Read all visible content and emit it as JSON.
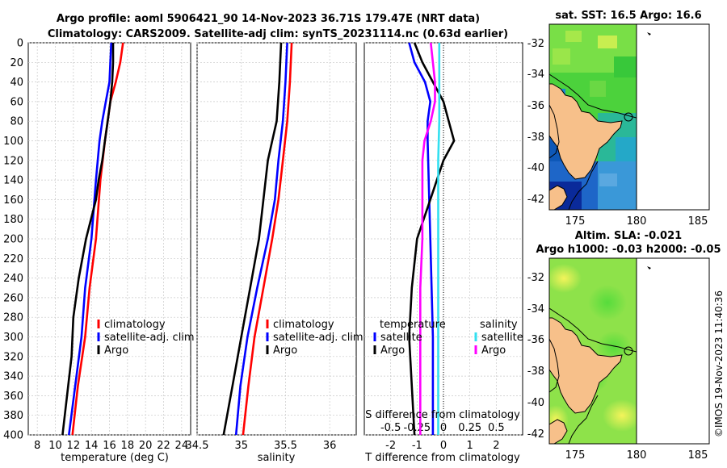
{
  "header": {
    "title_line1": "Argo profile: aoml 5906421_90 14-Nov-2023 36.71S 179.47E (NRT data)",
    "title_line2": "Climatology: CARS2009. Satellite-adj clim: synTS_20231114.nc (0.63d earlier)"
  },
  "colors": {
    "climatology": "#ff0000",
    "satellite": "#0000ff",
    "argo": "#000000",
    "sat_salinity": "#33e0f0",
    "argo_salinity": "#ff00ff",
    "land": "#f7c08a"
  },
  "chart_data": [
    {
      "type": "line",
      "id": "temperature",
      "xlabel": "temperature (deg C)",
      "ylabel": "",
      "xlim": [
        7,
        25
      ],
      "ylim": [
        400,
        0
      ],
      "xticks": [
        "8",
        "10",
        "12",
        "14",
        "16",
        "18",
        "20",
        "22",
        "24"
      ],
      "xtick_values": [
        8,
        10,
        12,
        14,
        16,
        18,
        20,
        22,
        24
      ],
      "yticks": [
        "0",
        "20",
        "40",
        "60",
        "80",
        "100",
        "120",
        "140",
        "160",
        "180",
        "200",
        "220",
        "240",
        "260",
        "280",
        "300",
        "320",
        "340",
        "360",
        "380",
        "400"
      ],
      "ytick_values": [
        0,
        20,
        40,
        60,
        80,
        100,
        120,
        140,
        160,
        180,
        200,
        220,
        240,
        260,
        280,
        300,
        320,
        340,
        360,
        380,
        400
      ],
      "grid": true,
      "legend": [
        "climatology",
        "satellite-adj. clim",
        "Argo"
      ],
      "series": [
        {
          "name": "climatology",
          "color": "#ff0000",
          "depth": [
            0,
            20,
            40,
            60,
            80,
            100,
            140,
            200,
            250,
            300,
            350,
            400
          ],
          "values": [
            17.5,
            17.2,
            16.7,
            16.1,
            15.8,
            15.5,
            15.0,
            14.5,
            13.8,
            13.3,
            12.5,
            11.9
          ]
        },
        {
          "name": "satellite-adj. clim",
          "color": "#0000ff",
          "depth": [
            0,
            20,
            40,
            60,
            80,
            100,
            140,
            200,
            250,
            300,
            350,
            400
          ],
          "values": [
            16.2,
            16.1,
            16.0,
            15.6,
            15.2,
            14.9,
            14.5,
            14.0,
            13.3,
            12.9,
            12.2,
            11.5
          ]
        },
        {
          "name": "Argo",
          "color": "#000000",
          "depth": [
            0,
            20,
            40,
            60,
            80,
            100,
            120,
            140,
            160,
            200,
            240,
            280,
            320,
            360,
            400
          ],
          "values": [
            16.4,
            16.4,
            16.3,
            16.1,
            15.8,
            15.5,
            15.2,
            14.8,
            14.5,
            13.4,
            12.6,
            12.0,
            11.8,
            11.3,
            10.8
          ]
        }
      ]
    },
    {
      "type": "line",
      "id": "salinity",
      "xlabel": "salinity",
      "xlim": [
        34.5,
        36.3
      ],
      "ylim": [
        400,
        0
      ],
      "xticks": [
        "34.5",
        "35",
        "35.5",
        "36"
      ],
      "xtick_values": [
        34.5,
        35.0,
        35.5,
        36.0
      ],
      "grid": true,
      "legend": [
        "climatology",
        "satellite-adj. clim",
        "Argo"
      ],
      "series": [
        {
          "name": "climatology",
          "color": "#ff0000",
          "depth": [
            0,
            40,
            80,
            120,
            160,
            200,
            250,
            300,
            350,
            400
          ],
          "values": [
            35.57,
            35.55,
            35.52,
            35.47,
            35.42,
            35.35,
            35.25,
            35.15,
            35.08,
            35.02
          ]
        },
        {
          "name": "satellite-adj. clim",
          "color": "#0000ff",
          "depth": [
            0,
            40,
            80,
            120,
            160,
            200,
            250,
            300,
            350,
            400
          ],
          "values": [
            35.52,
            35.5,
            35.47,
            35.42,
            35.38,
            35.3,
            35.18,
            35.07,
            34.99,
            34.94
          ]
        },
        {
          "name": "Argo",
          "color": "#000000",
          "depth": [
            0,
            40,
            80,
            100,
            120,
            160,
            200,
            250,
            300,
            350,
            400
          ],
          "values": [
            35.45,
            35.43,
            35.4,
            35.35,
            35.3,
            35.25,
            35.2,
            35.1,
            35.0,
            34.9,
            34.8
          ]
        }
      ]
    },
    {
      "type": "line",
      "id": "difference",
      "xlabel": "T difference from climatology",
      "top_axis_label": "S difference from climatology",
      "xlim": [
        -3,
        3
      ],
      "ylim": [
        400,
        0
      ],
      "xticks": [
        "-2",
        "-1",
        "0",
        "1",
        "2"
      ],
      "xtick_values": [
        -2,
        -1,
        0,
        1,
        2
      ],
      "top_ticks": [
        "-0.5",
        "-0.25",
        "0",
        "0.25",
        "0.5"
      ],
      "top_tick_values": [
        -0.5,
        -0.25,
        0,
        0.25,
        0.5
      ],
      "grid": true,
      "legend_left": {
        "title": "temperature",
        "items": [
          "satellite",
          "Argo"
        ]
      },
      "legend_right": {
        "title": "salinity",
        "items": [
          "satellite",
          "Argo"
        ]
      },
      "series": [
        {
          "name": "temperature satellite",
          "color": "#0000ff",
          "depth": [
            0,
            20,
            40,
            60,
            80,
            100,
            200,
            300,
            400
          ],
          "values": [
            -1.3,
            -1.1,
            -0.7,
            -0.5,
            -0.6,
            -0.6,
            -0.5,
            -0.4,
            -0.4
          ]
        },
        {
          "name": "temperature Argo",
          "color": "#000000",
          "depth": [
            0,
            20,
            40,
            60,
            80,
            100,
            120,
            160,
            200,
            250,
            300,
            350,
            400
          ],
          "values": [
            -1.1,
            -0.8,
            -0.4,
            0.0,
            0.2,
            0.4,
            0.0,
            -0.5,
            -1.0,
            -1.2,
            -1.3,
            -1.2,
            -1.1
          ]
        },
        {
          "name": "salinity satellite",
          "color": "#33e0f0",
          "depth": [
            0,
            20,
            40,
            80,
            120,
            200,
            300,
            400
          ],
          "values": [
            -0.04,
            -0.04,
            -0.04,
            -0.04,
            -0.05,
            -0.05,
            -0.05,
            -0.05
          ]
        },
        {
          "name": "salinity Argo",
          "color": "#ff00ff",
          "depth": [
            0,
            20,
            40,
            60,
            80,
            100,
            120,
            160,
            200,
            250,
            300,
            350,
            400
          ],
          "values": [
            -0.12,
            -0.1,
            -0.08,
            -0.08,
            -0.12,
            -0.18,
            -0.2,
            -0.2,
            -0.2,
            -0.22,
            -0.22,
            -0.22,
            -0.22
          ]
        }
      ]
    }
  ],
  "maps": {
    "sst": {
      "title": "sat. SST: 16.5  Argo: 16.6",
      "lat_ticks": [
        "-32",
        "-34",
        "-36",
        "-38",
        "-40",
        "-42"
      ],
      "lon_ticks": [
        "175",
        "180",
        "185"
      ]
    },
    "sla": {
      "title_line1": "Altim. SLA: -0.021",
      "title_line2": "Argo h1000: -0.03 h2000: -0.05",
      "lat_ticks": [
        "-32",
        "-34",
        "-36",
        "-38",
        "-40",
        "-42"
      ],
      "lon_ticks": [
        "175",
        "180",
        "185"
      ]
    }
  },
  "footer": {
    "credit": "©IMOS 19-Nov-2023 11:40:36"
  }
}
